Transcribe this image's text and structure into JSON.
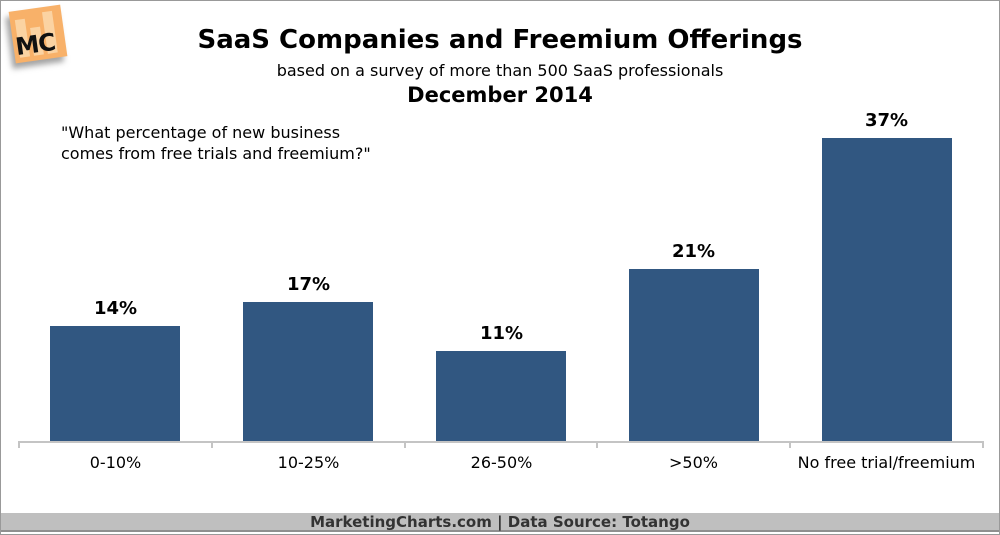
{
  "header": {
    "title": "SaaS Companies and Freemium Offerings",
    "subtitle": "based on a survey of more than 500 SaaS professionals",
    "period": "December 2014"
  },
  "annotation": {
    "line1": "\"What percentage of new business",
    "line2": "comes from free trials and freemium?\""
  },
  "logo": {
    "text": "MC",
    "bg_color": "#F8B169",
    "bar_color": "#FBD3A2"
  },
  "footer": {
    "text": "MarketingCharts.com | Data Source: Totango",
    "bg_color": "#BFBFBF"
  },
  "chart_data": {
    "type": "bar",
    "title": "SaaS Companies and Freemium Offerings",
    "subtitle": "based on a survey of more than 500 SaaS professionals",
    "date": "December 2014",
    "question": "\"What percentage of new business comes from free trials and freemium?\"",
    "categories": [
      "0-10%",
      "10-25%",
      "26-50%",
      ">50%",
      "No free trial/freemium"
    ],
    "values": [
      14,
      17,
      11,
      21,
      37
    ],
    "value_labels": [
      "14%",
      "17%",
      "11%",
      "21%",
      "37%"
    ],
    "xlabel": "",
    "ylabel": "",
    "ylim": [
      0,
      40
    ],
    "grid": false,
    "legend": false,
    "bar_color": "#315781",
    "axis_color": "#C4C4C4",
    "source": "MarketingCharts.com | Data Source: Totango"
  }
}
